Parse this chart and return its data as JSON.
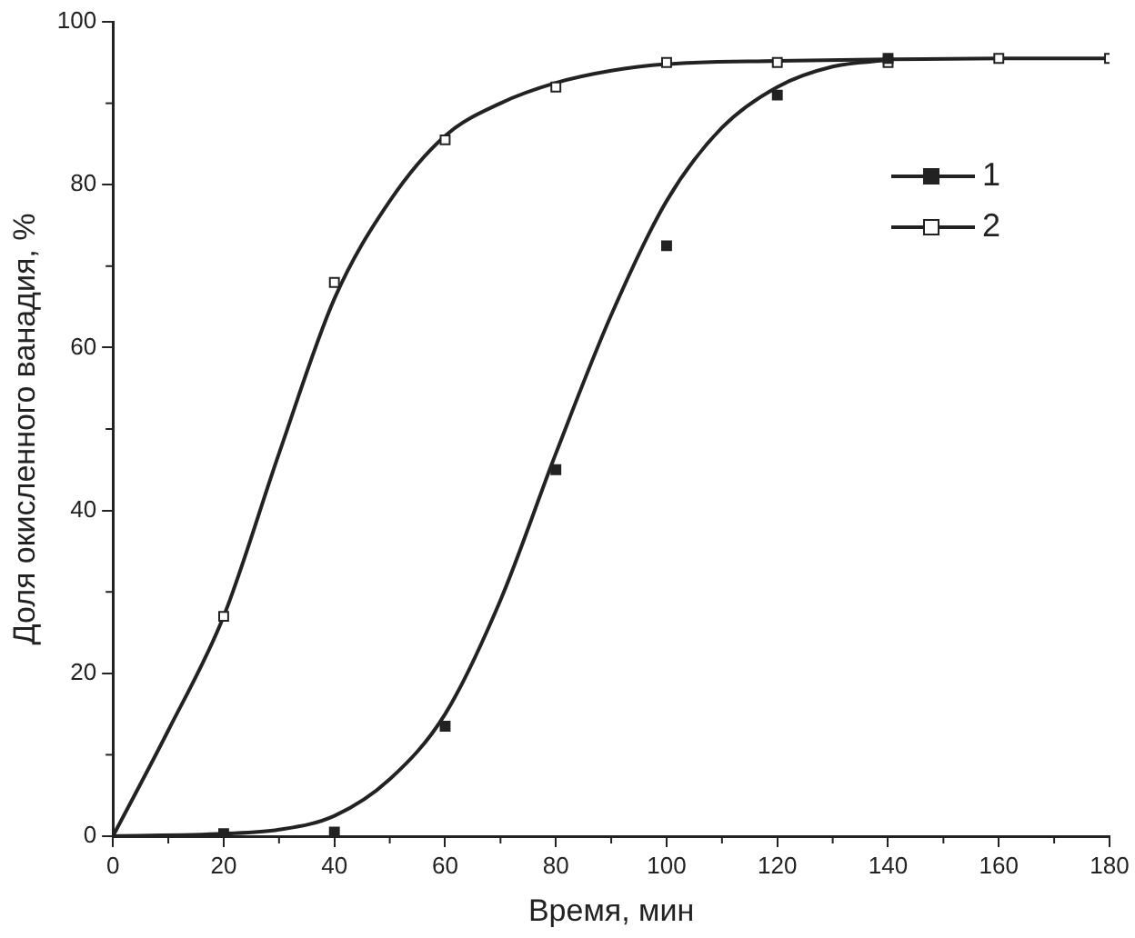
{
  "chart_data": {
    "type": "scatter",
    "xlabel": "Время, мин",
    "ylabel": "Доля окисленного ванадия, %",
    "xlim": [
      0,
      180
    ],
    "xticks": [
      0,
      20,
      40,
      60,
      80,
      100,
      120,
      140,
      160,
      180
    ],
    "ylim": [
      0,
      100
    ],
    "yticks": [
      0,
      20,
      40,
      60,
      80,
      100
    ],
    "grid": false,
    "legend": "top right",
    "series": [
      {
        "name": "1",
        "marker": "square",
        "color": "#222222",
        "x": [
          20,
          40,
          60,
          80,
          100,
          120,
          140
        ],
        "values": [
          0.3,
          0.5,
          13.5,
          45,
          72.5,
          91,
          95.5
        ]
      },
      {
        "name": "2",
        "marker": "square",
        "color": "#ffffff",
        "x": [
          20,
          40,
          60,
          80,
          100,
          120,
          140,
          160,
          180
        ],
        "values": [
          27,
          68,
          85.5,
          92,
          95,
          95,
          95,
          95.5,
          95.5
        ]
      },
      {
        "type": "line",
        "marker": "none",
        "color": "#222222",
        "x": [
          0,
          20,
          30,
          40,
          50,
          60,
          70,
          80,
          90,
          100,
          110,
          120,
          130,
          140
        ],
        "values": [
          0,
          0.3,
          0.8,
          2.5,
          7,
          15,
          29,
          47,
          64,
          78,
          87,
          92,
          94.5,
          95.3
        ]
      },
      {
        "type": "line",
        "marker": "none",
        "color": "#222222",
        "x": [
          0,
          10,
          20,
          30,
          40,
          50,
          60,
          70,
          80,
          90,
          100,
          120,
          140,
          160,
          180
        ],
        "values": [
          0,
          13,
          27,
          47,
          66,
          78,
          86,
          90,
          92.5,
          94,
          94.8,
          95.2,
          95.4,
          95.5,
          95.5
        ]
      }
    ]
  }
}
